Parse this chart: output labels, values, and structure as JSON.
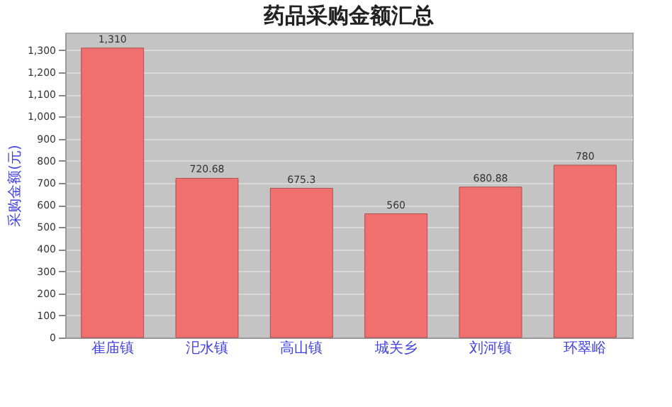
{
  "chart_data": {
    "type": "bar",
    "title": "药品采购金额汇总",
    "ylabel": "采购金额(元)",
    "categories": [
      "崔庙镇",
      "汜水镇",
      "高山镇",
      "城关乡",
      "刘河镇",
      "环翠峪"
    ],
    "values": [
      1310,
      720.68,
      675.3,
      560,
      680.88,
      780
    ],
    "value_labels": [
      "1,310",
      "720.68",
      "675.3",
      "560",
      "680.88",
      "780"
    ],
    "color": "#f07070",
    "ylim": [
      0,
      1380
    ],
    "yticks": [
      0,
      100,
      200,
      300,
      400,
      500,
      600,
      700,
      800,
      900,
      {
        "value": 1000,
        "label": "1,000"
      },
      {
        "value": 1100,
        "label": "1,100"
      },
      {
        "value": 1200,
        "label": "1,200"
      },
      {
        "value": 1300,
        "label": "1,300"
      }
    ],
    "grid": "y"
  }
}
